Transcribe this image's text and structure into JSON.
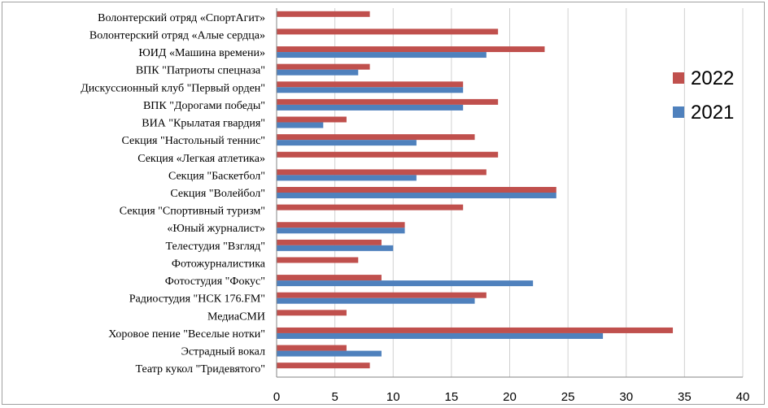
{
  "chart_data": {
    "type": "bar",
    "orientation": "horizontal",
    "title": "",
    "xlabel": "",
    "ylabel": "",
    "xlim": [
      0,
      40
    ],
    "x_ticks": [
      "0",
      "5",
      "10",
      "15",
      "20",
      "25",
      "30",
      "35",
      "40"
    ],
    "grid": "vertical",
    "legend_position": "right",
    "categories": [
      "Волонтерский отряд «СпортАгит»",
      "Волонтерский отряд «Алые сердца»",
      "ЮИД «Машина времени»",
      "ВПК \"Патриоты спецназа\"",
      "Дискуссионный клуб \"Первый орден\"",
      "ВПК \"Дорогами победы\"",
      "ВИА \"Крылатая гвардия\"",
      "Секция \"Настольный теннис\"",
      "Секция «Легкая атлетика»",
      "Секция \"Баскетбол\"",
      "Секция \"Волейбол\"",
      "Секция \"Спортивный туризм\"",
      "«Юный журналист»",
      "Телестудия \"Взгляд\"",
      "Фотожурналистика",
      "Фотостудия \"Фокус\"",
      "Радиостудия \"НСК 176.FM\"",
      "МедиаСМИ",
      "Хоровое пение \"Веселые нотки\"",
      "Эстрадный вокал",
      "Театр кукол  \"Тридевятого\""
    ],
    "series": [
      {
        "name": "2022",
        "color": "#c0504d",
        "values": [
          8,
          19,
          23,
          8,
          16,
          19,
          6,
          17,
          19,
          18,
          24,
          16,
          11,
          9,
          7,
          9,
          18,
          6,
          34,
          6,
          8
        ]
      },
      {
        "name": "2021",
        "color": "#4f81bd",
        "values": [
          0,
          0,
          18,
          7,
          16,
          16,
          4,
          12,
          0,
          12,
          24,
          0,
          11,
          10,
          0,
          22,
          17,
          0,
          28,
          9,
          0
        ]
      }
    ]
  }
}
